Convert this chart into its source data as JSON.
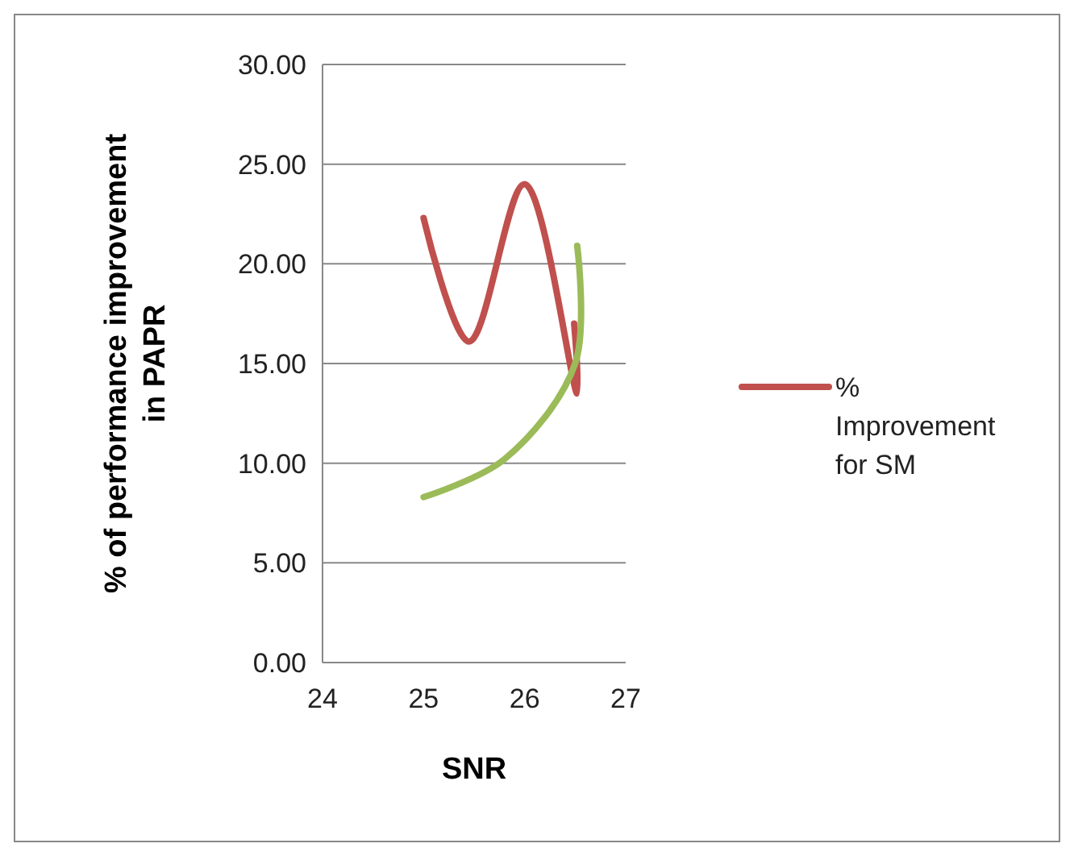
{
  "chart_data": {
    "type": "line",
    "xlabel": "SNR",
    "ylabel": "% of performance improvement in PAPR",
    "xlim": [
      24,
      27
    ],
    "xticks": [
      24,
      25,
      26,
      27
    ],
    "ylim": [
      0,
      30
    ],
    "yticks": [
      {
        "value": 0,
        "label": "0.00"
      },
      {
        "value": 5,
        "label": "5.00"
      },
      {
        "value": 10,
        "label": "10.00"
      },
      {
        "value": 15,
        "label": "15.00"
      },
      {
        "value": 20,
        "label": "20.00"
      },
      {
        "value": 25,
        "label": "25.00"
      },
      {
        "value": 30,
        "label": "30.00"
      }
    ],
    "grid": "y",
    "legend": "right",
    "marker": "none",
    "series": [
      {
        "name": "% Improvement for SM",
        "color": "#c0504d",
        "x": [
          25,
          25.45,
          26,
          26.52,
          26.49
        ],
        "values": [
          22.3,
          16.1,
          24,
          13.5,
          17
        ]
      },
      {
        "color": "#9bbb59",
        "x": [
          25,
          25.8,
          26.5,
          26.52
        ],
        "values": [
          8.3,
          10.2,
          15,
          20.9
        ]
      }
    ]
  }
}
